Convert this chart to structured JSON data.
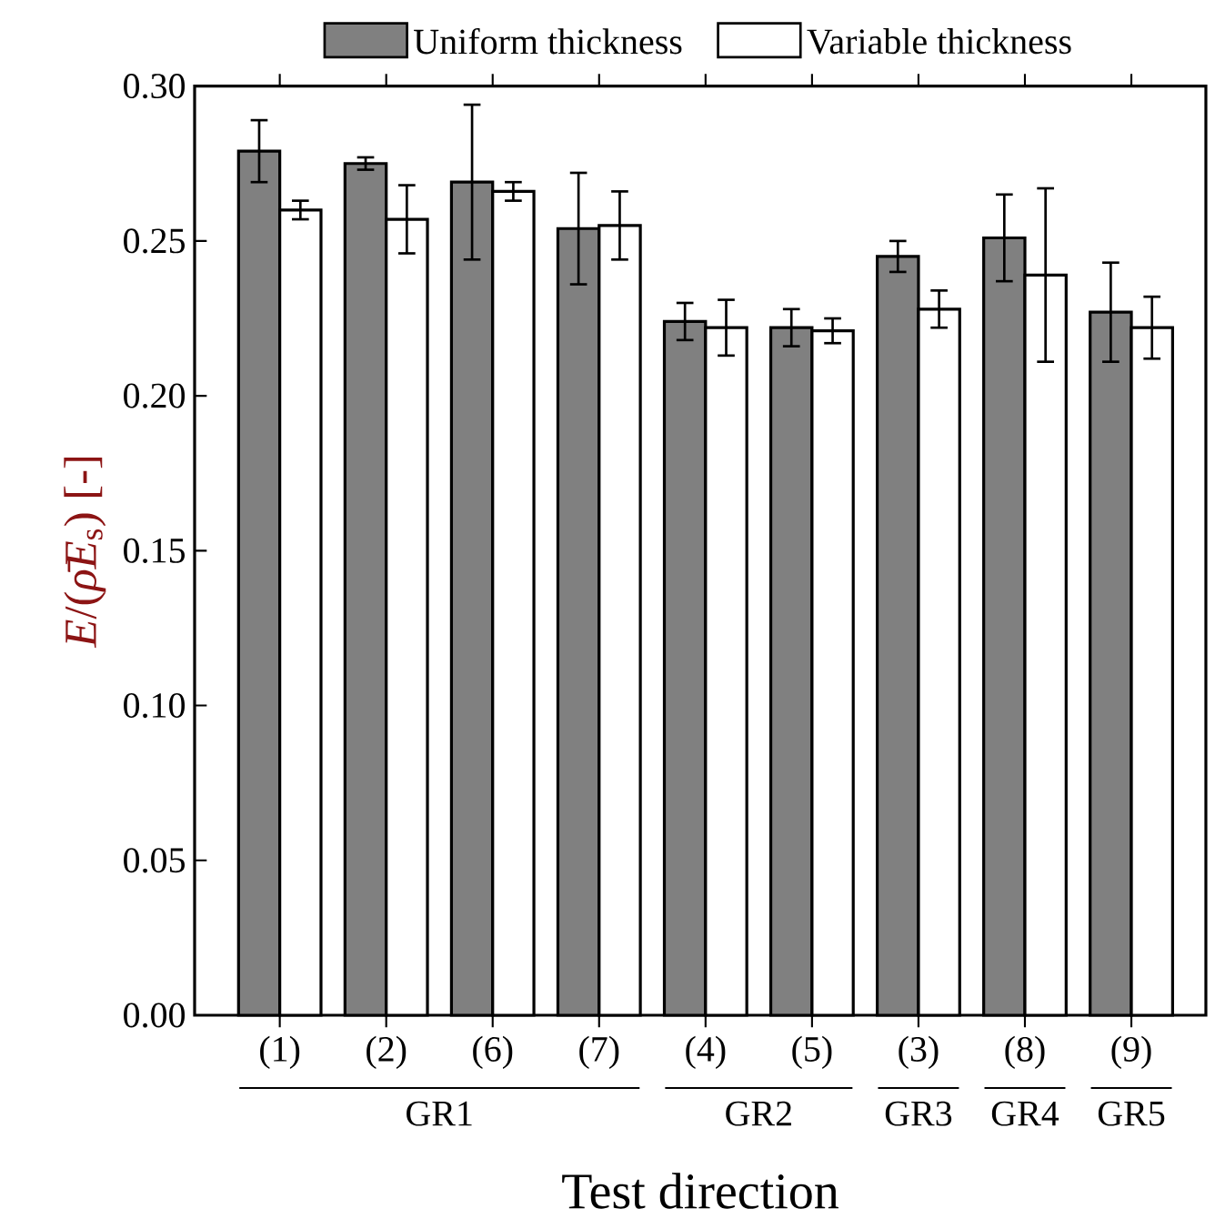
{
  "chart_data": {
    "type": "bar",
    "xlabel": "Test direction",
    "ylabel": "*E*/(*ρ̄E*$_{s}$) [-]",
    "categories": [
      "(1)",
      "(2)",
      "(6)",
      "(7)",
      "(4)",
      "(5)",
      "(3)",
      "(8)",
      "(9)"
    ],
    "series": [
      {
        "name": "Uniform thickness",
        "color": "#808080",
        "values": [
          0.279,
          0.275,
          0.269,
          0.254,
          0.224,
          0.222,
          0.245,
          0.251,
          0.227
        ],
        "errors": [
          0.01,
          0.002,
          0.025,
          0.018,
          0.006,
          0.006,
          0.005,
          0.014,
          0.016
        ]
      },
      {
        "name": "Variable thickness",
        "color": "#ffffff",
        "values": [
          0.26,
          0.257,
          0.266,
          0.255,
          0.222,
          0.221,
          0.228,
          0.239,
          0.222
        ],
        "errors": [
          0.003,
          0.011,
          0.003,
          0.011,
          0.009,
          0.004,
          0.006,
          0.028,
          0.01
        ]
      }
    ],
    "ylim": [
      0,
      0.3
    ],
    "yticks": [
      {
        "value": 0,
        "label": "0.00"
      },
      {
        "value": 0.05,
        "label": "0.05"
      },
      {
        "value": 0.1,
        "label": "0.10"
      },
      {
        "value": 0.15,
        "label": "0.15"
      },
      {
        "value": 0.2,
        "label": "0.20"
      },
      {
        "value": 0.25,
        "label": "0.25"
      },
      {
        "value": 0.3,
        "label": "0.30"
      }
    ],
    "annotations": [
      "GR1",
      "GR2",
      "GR3",
      "GR4",
      "GR5"
    ],
    "legend": "top",
    "grid": false
  }
}
